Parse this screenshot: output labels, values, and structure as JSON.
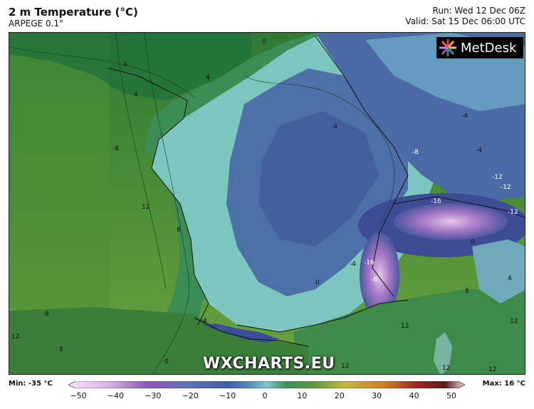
{
  "header": {
    "title": "2 m Temperature (°C)",
    "subtitle": "ARPEGE 0.1°",
    "run": "Run: Wed 12 Dec 06Z",
    "valid": "Valid: Sat 15 Dec 06:00 UTC"
  },
  "logo": {
    "text": "MetDesk"
  },
  "watermark": "WXCHARTS.EU",
  "colorbar": {
    "min_label": "Min: -35 °C",
    "max_label": "Max: 16 °C",
    "ticks": [
      "−50",
      "−40",
      "−30",
      "−20",
      "−10",
      "0",
      "10",
      "20",
      "30",
      "40",
      "50"
    ]
  },
  "map": {
    "region": "France",
    "contour_labels": [
      "0",
      "4",
      "4",
      "4",
      "-4",
      "-4",
      "-4",
      "-8",
      "-8",
      "-12",
      "-12",
      "-12",
      "-16",
      "-16",
      "-8",
      "8",
      "12",
      "8",
      "4",
      "0",
      "0",
      "8",
      "12",
      "12",
      "12",
      "12",
      "12",
      "12",
      "8",
      "4",
      "0",
      "-4"
    ]
  },
  "colors": {
    "ocean_green": "#5d9a3e",
    "coastal_green": "#3f8a4a",
    "cold_light": "#7fc8c6",
    "cold_blue": "#4b6fa8",
    "alps_purple": "#b58ad0"
  }
}
